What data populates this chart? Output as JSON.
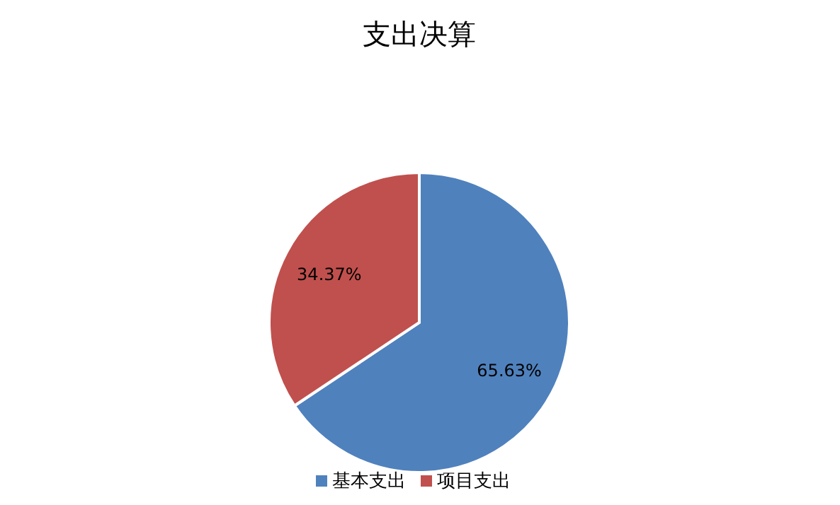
{
  "chart_data": {
    "type": "pie",
    "title": "支出决算",
    "categories": [
      "基本支出",
      "项目支出"
    ],
    "values": [
      65.63,
      34.37
    ],
    "colors": [
      "#4f81bd",
      "#c0504d"
    ],
    "value_labels": [
      "65.63%",
      "34.37%"
    ],
    "legend": "bottom"
  }
}
